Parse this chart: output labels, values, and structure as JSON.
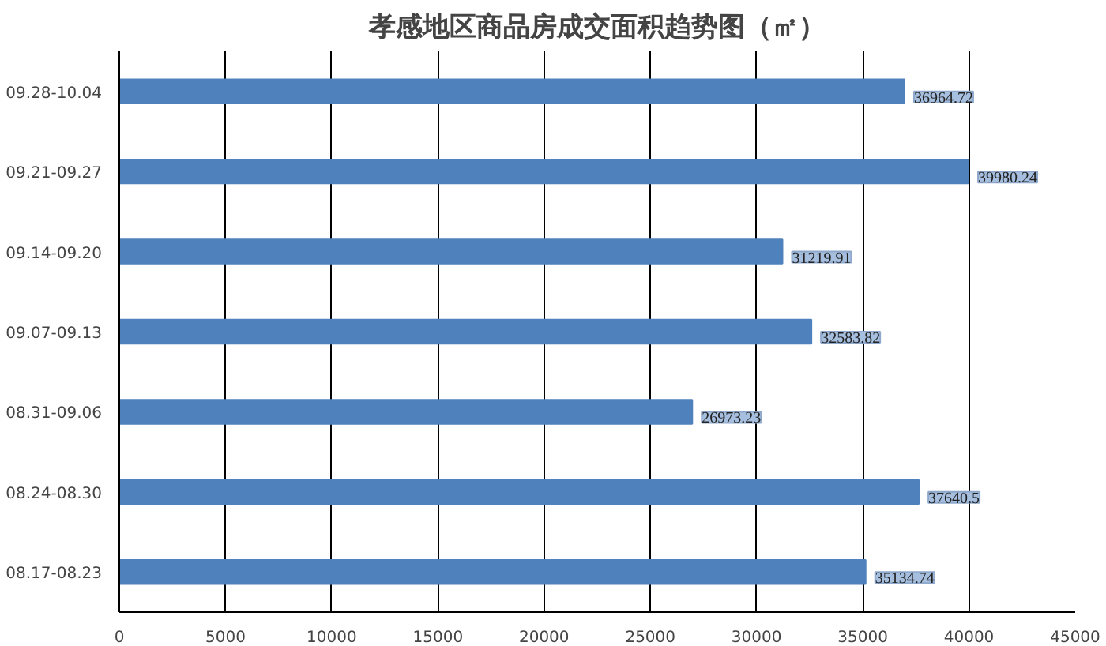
{
  "chart_data": {
    "type": "bar",
    "orientation": "horizontal",
    "title": "孝感地区商品房成交面积趋势图（㎡）",
    "categories": [
      "09.28-10.04",
      "09.21-09.27",
      "09.14-09.20",
      "09.07-09.13",
      "08.31-09.06",
      "08.24-08.30",
      "08.17-08.23"
    ],
    "values": [
      36964.72,
      39980.24,
      31219.91,
      32583.82,
      26973.23,
      37640.5,
      35134.74
    ],
    "color": "#4f81bd",
    "xlim": [
      0,
      45000
    ],
    "xticks": [
      0,
      5000,
      10000,
      15000,
      20000,
      25000,
      30000,
      35000,
      40000,
      45000
    ],
    "grid": "x",
    "data_labels": true
  }
}
